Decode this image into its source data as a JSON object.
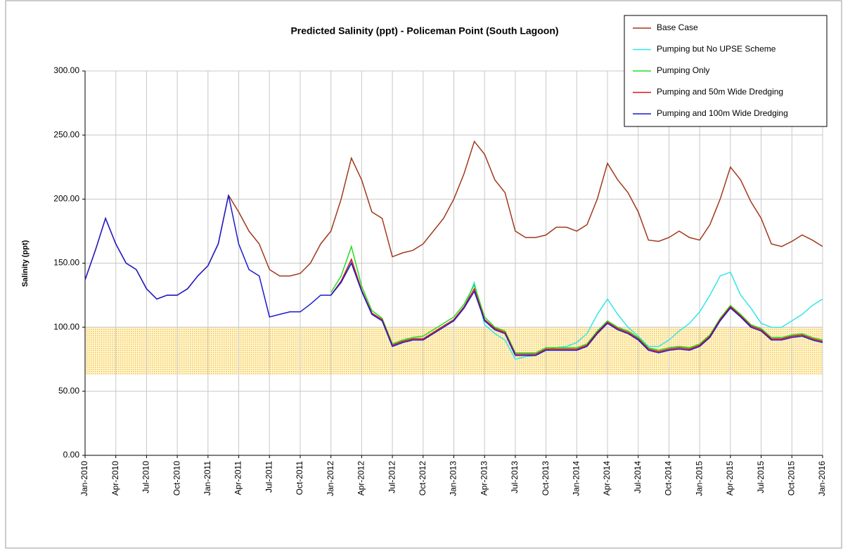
{
  "chart_data": {
    "type": "line",
    "title": "Predicted Salinity (ppt) - Policeman Point (South Lagoon)",
    "y_label": "Salinity (ppt)",
    "x": [
      "Jan-2010",
      "Feb-2010",
      "Mar-2010",
      "Apr-2010",
      "May-2010",
      "Jun-2010",
      "Jul-2010",
      "Aug-2010",
      "Sep-2010",
      "Oct-2010",
      "Nov-2010",
      "Dec-2010",
      "Jan-2011",
      "Feb-2011",
      "Mar-2011",
      "Apr-2011",
      "May-2011",
      "Jun-2011",
      "Jul-2011",
      "Aug-2011",
      "Sep-2011",
      "Oct-2011",
      "Nov-2011",
      "Dec-2011",
      "Jan-2012",
      "Feb-2012",
      "Mar-2012",
      "Apr-2012",
      "May-2012",
      "Jun-2012",
      "Jul-2012",
      "Aug-2012",
      "Sep-2012",
      "Oct-2012",
      "Nov-2012",
      "Dec-2012",
      "Jan-2013",
      "Feb-2013",
      "Mar-2013",
      "Apr-2013",
      "May-2013",
      "Jun-2013",
      "Jul-2013",
      "Aug-2013",
      "Sep-2013",
      "Oct-2013",
      "Nov-2013",
      "Dec-2013",
      "Jan-2014",
      "Feb-2014",
      "Mar-2014",
      "Apr-2014",
      "May-2014",
      "Jun-2014",
      "Jul-2014",
      "Aug-2014",
      "Sep-2014",
      "Oct-2014",
      "Nov-2014",
      "Dec-2014",
      "Jan-2015",
      "Feb-2015",
      "Mar-2015",
      "Apr-2015",
      "May-2015",
      "Jun-2015",
      "Jul-2015",
      "Aug-2015",
      "Sep-2015",
      "Oct-2015",
      "Nov-2015",
      "Dec-2015",
      "Jan-2016"
    ],
    "xticks": [
      "Jan-2010",
      "Apr-2010",
      "Jul-2010",
      "Oct-2010",
      "Jan-2011",
      "Apr-2011",
      "Jul-2011",
      "Oct-2011",
      "Jan-2012",
      "Apr-2012",
      "Jul-2012",
      "Oct-2012",
      "Jan-2013",
      "Apr-2013",
      "Jul-2013",
      "Oct-2013",
      "Jan-2014",
      "Apr-2014",
      "Jul-2014",
      "Oct-2014",
      "Jan-2015",
      "Apr-2015",
      "Jul-2015",
      "Oct-2015",
      "Jan-2016"
    ],
    "ylim": [
      0,
      300
    ],
    "yticks": [
      {
        "value": 0,
        "label": "0.00"
      },
      {
        "value": 50,
        "label": "50.00"
      },
      {
        "value": 100,
        "label": "100.00"
      },
      {
        "value": 150,
        "label": "150.00"
      },
      {
        "value": 200,
        "label": "200.00"
      },
      {
        "value": 250,
        "label": "250.00"
      },
      {
        "value": 300,
        "label": "300.00"
      }
    ],
    "grid": true,
    "band": {
      "range": [
        63,
        100
      ],
      "color": "#f5c842"
    },
    "legend": "top-right",
    "series": [
      {
        "name": "Base Case",
        "color": "#a0391a",
        "values": [
          137,
          160,
          185,
          165,
          150,
          145,
          130,
          122,
          125,
          125,
          130,
          140,
          148,
          165,
          203,
          190,
          175,
          165,
          145,
          140,
          140,
          142,
          150,
          165,
          175,
          200,
          232,
          215,
          190,
          185,
          155,
          158,
          160,
          165,
          175,
          185,
          200,
          220,
          245,
          235,
          215,
          205,
          175,
          170,
          170,
          172,
          178,
          178,
          175,
          180,
          200,
          228,
          215,
          205,
          190,
          168,
          167,
          170,
          175,
          170,
          168,
          180,
          200,
          225,
          215,
          198,
          185,
          165,
          163,
          167,
          172,
          168,
          163
        ]
      },
      {
        "name": "Pumping but No UPSE Scheme",
        "color": "#33e6e6",
        "values": [
          null,
          null,
          null,
          null,
          null,
          null,
          null,
          null,
          null,
          null,
          null,
          null,
          null,
          null,
          null,
          null,
          null,
          null,
          null,
          null,
          null,
          null,
          null,
          null,
          125,
          135,
          152,
          128,
          110,
          105,
          85,
          88,
          90,
          90,
          95,
          100,
          105,
          115,
          135,
          102,
          95,
          90,
          75,
          77,
          78,
          82,
          84,
          85,
          88,
          95,
          110,
          122,
          110,
          100,
          93,
          85,
          85,
          90,
          97,
          103,
          112,
          125,
          140,
          143,
          125,
          115,
          103,
          100,
          100,
          105,
          110,
          117,
          122
        ]
      },
      {
        "name": "Pumping Only",
        "color": "#22dd22",
        "values": [
          null,
          null,
          null,
          null,
          null,
          null,
          null,
          null,
          null,
          null,
          null,
          null,
          null,
          null,
          null,
          null,
          null,
          null,
          null,
          null,
          null,
          null,
          null,
          null,
          127,
          140,
          163,
          132,
          113,
          107,
          87,
          90,
          92,
          93,
          98,
          103,
          108,
          118,
          133,
          108,
          100,
          97,
          80,
          80,
          80,
          84,
          84,
          84,
          84,
          87,
          97,
          105,
          100,
          97,
          92,
          84,
          82,
          84,
          85,
          84,
          87,
          94,
          107,
          117,
          110,
          102,
          99,
          92,
          92,
          94,
          95,
          92,
          90
        ]
      },
      {
        "name": "Pumping and 50m Wide Dredging",
        "color": "#e01010",
        "values": [
          null,
          null,
          null,
          null,
          null,
          null,
          null,
          null,
          null,
          null,
          null,
          null,
          null,
          null,
          null,
          null,
          null,
          null,
          null,
          null,
          null,
          null,
          null,
          null,
          125,
          136,
          153,
          129,
          111,
          106,
          86,
          89,
          91,
          91,
          96,
          101,
          106,
          116,
          130,
          106,
          99,
          96,
          79,
          79,
          79,
          83,
          83,
          83,
          83,
          86,
          96,
          104,
          99,
          96,
          91,
          83,
          81,
          83,
          84,
          83,
          86,
          93,
          106,
          116,
          109,
          101,
          98,
          91,
          91,
          93,
          94,
          91,
          89
        ]
      },
      {
        "name": "Pumping and 100m Wide Dredging",
        "color": "#1a1ad0",
        "values": [
          137,
          160,
          185,
          165,
          150,
          145,
          130,
          122,
          125,
          125,
          130,
          140,
          148,
          165,
          203,
          165,
          145,
          140,
          108,
          110,
          112,
          112,
          118,
          125,
          125,
          135,
          150,
          128,
          110,
          105,
          85,
          88,
          90,
          90,
          95,
          100,
          105,
          115,
          128,
          105,
          98,
          95,
          78,
          78,
          78,
          82,
          82,
          82,
          82,
          85,
          95,
          103,
          98,
          95,
          90,
          82,
          80,
          82,
          83,
          82,
          85,
          92,
          105,
          115,
          108,
          100,
          97,
          90,
          90,
          92,
          93,
          90,
          88
        ]
      }
    ]
  }
}
